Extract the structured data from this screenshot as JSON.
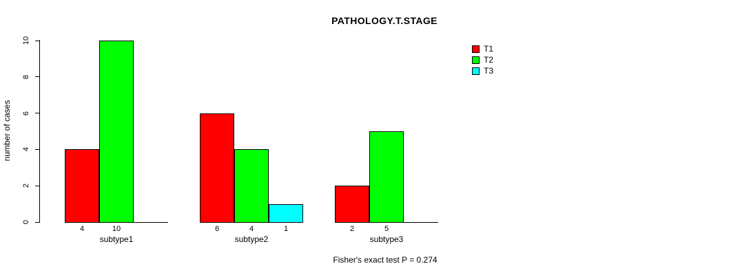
{
  "chart_data": {
    "type": "bar",
    "title": "PATHOLOGY.T.STAGE",
    "ylabel": "number of cases",
    "xlabel": "",
    "ylim": [
      0,
      10
    ],
    "yticks": [
      0,
      2,
      4,
      6,
      8,
      10
    ],
    "grid": false,
    "legend_position": "top-right",
    "categories": [
      "subtype1",
      "subtype2",
      "subtype3"
    ],
    "series": [
      {
        "name": "T1",
        "color": "#FF0000",
        "values": [
          4,
          6,
          2
        ]
      },
      {
        "name": "T2",
        "color": "#00FF00",
        "values": [
          10,
          4,
          5
        ]
      },
      {
        "name": "T3",
        "color": "#00FFFF",
        "values": [
          null,
          1,
          null
        ]
      }
    ],
    "bar_value_labels": [
      [
        "4",
        "10",
        null
      ],
      [
        "6",
        "4",
        "1"
      ],
      [
        "2",
        "5",
        null
      ]
    ],
    "annotation": "Fisher's exact test P = 0.274"
  }
}
